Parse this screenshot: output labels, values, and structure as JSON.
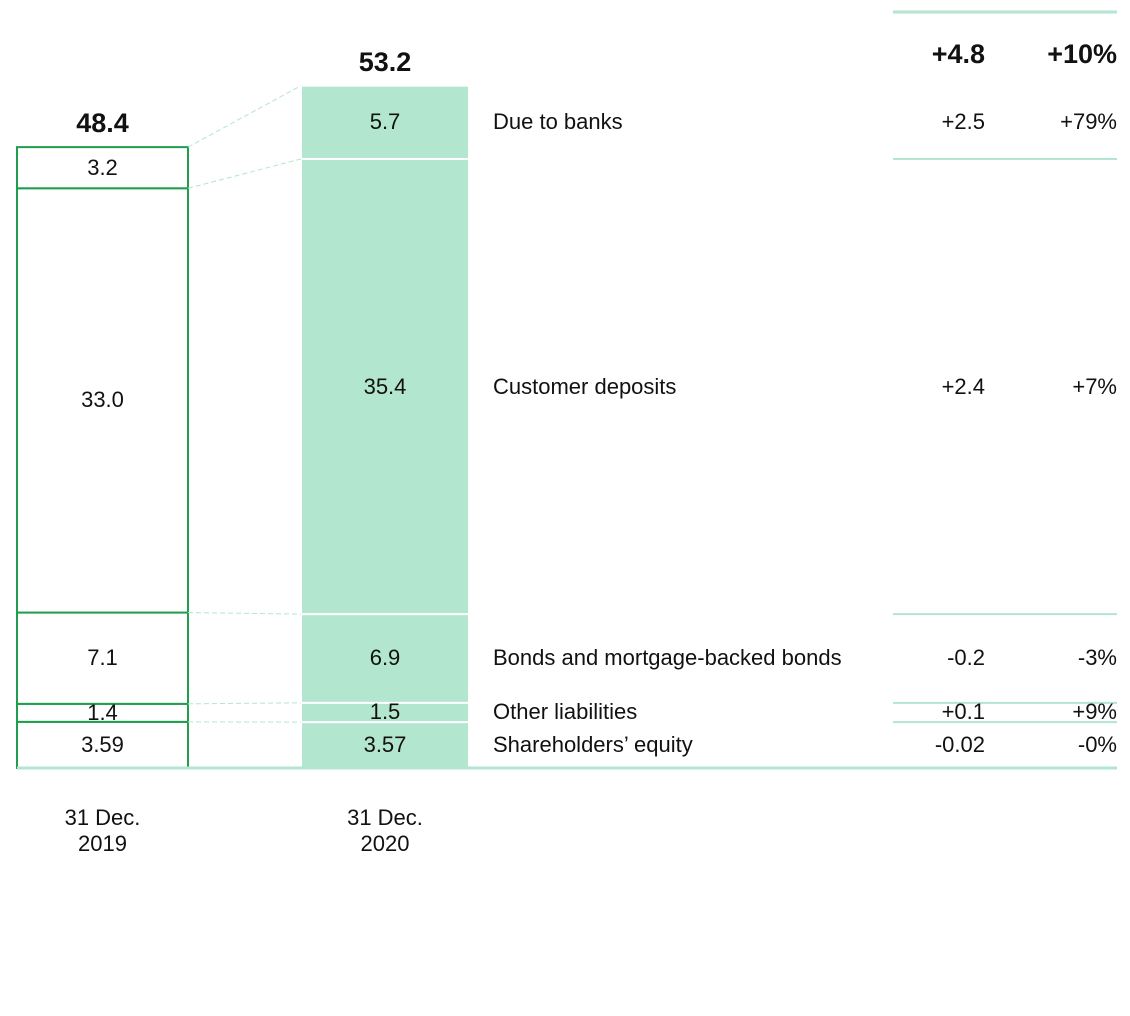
{
  "chart_data": {
    "type": "stacked_bar",
    "categories": [
      "31 Dec. 2019",
      "31 Dec. 2020"
    ],
    "totals": [
      48.4,
      53.2
    ],
    "total_change": "+4.8",
    "total_change_pct": "+10%",
    "series": [
      {
        "name": "Shareholders’ equity",
        "values": [
          3.59,
          3.57
        ],
        "change": "-0.02",
        "change_pct": "-0%"
      },
      {
        "name": "Other liabilities",
        "values": [
          1.4,
          1.5
        ],
        "change": "+0.1",
        "change_pct": "+9%"
      },
      {
        "name": "Bonds and mortgage-backed bonds",
        "values": [
          7.1,
          6.9
        ],
        "change": "-0.2",
        "change_pct": "-3%"
      },
      {
        "name": "Customer deposits",
        "values": [
          33.0,
          35.4
        ],
        "value_labels": [
          "33.0",
          "35.4"
        ],
        "change": "+2.4",
        "change_pct": "+7%"
      },
      {
        "name": "Due to banks",
        "values": [
          3.2,
          5.7
        ],
        "change": "+2.5",
        "change_pct": "+79%"
      }
    ],
    "colors": {
      "outline": "#1f9e4e",
      "fill": "#b3e6cf",
      "rule": "#b3e6cf"
    }
  }
}
